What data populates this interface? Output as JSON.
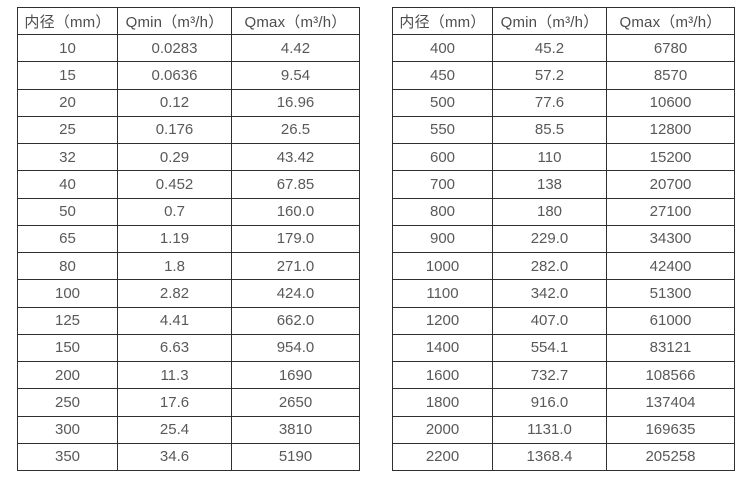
{
  "page": {
    "background_color": "#ffffff",
    "border_color": "#2f2f2f",
    "text_color": "#595959",
    "header_text_color": "#4d4d4d"
  },
  "chart_data": [
    {
      "type": "table",
      "title": "",
      "columns": [
        "内径（mm）",
        "Qmin（m³/h）",
        "Qmax（m³/h）"
      ],
      "rows": [
        [
          "10",
          "0.0283",
          "4.42"
        ],
        [
          "15",
          "0.0636",
          "9.54"
        ],
        [
          "20",
          "0.12",
          "16.96"
        ],
        [
          "25",
          "0.176",
          "26.5"
        ],
        [
          "32",
          "0.29",
          "43.42"
        ],
        [
          "40",
          "0.452",
          "67.85"
        ],
        [
          "50",
          "0.7",
          "160.0"
        ],
        [
          "65",
          "1.19",
          "179.0"
        ],
        [
          "80",
          "1.8",
          "271.0"
        ],
        [
          "100",
          "2.82",
          "424.0"
        ],
        [
          "125",
          "4.41",
          "662.0"
        ],
        [
          "150",
          "6.63",
          "954.0"
        ],
        [
          "200",
          "11.3",
          "1690"
        ],
        [
          "250",
          "17.6",
          "2650"
        ],
        [
          "300",
          "25.4",
          "3810"
        ],
        [
          "350",
          "34.6",
          "5190"
        ]
      ]
    },
    {
      "type": "table",
      "title": "",
      "columns": [
        "内径（mm）",
        "Qmin（m³/h）",
        "Qmax（m³/h）"
      ],
      "rows": [
        [
          "400",
          "45.2",
          "6780"
        ],
        [
          "450",
          "57.2",
          "8570"
        ],
        [
          "500",
          "77.6",
          "10600"
        ],
        [
          "550",
          "85.5",
          "12800"
        ],
        [
          "600",
          "110",
          "15200"
        ],
        [
          "700",
          "138",
          "20700"
        ],
        [
          "800",
          "180",
          "27100"
        ],
        [
          "900",
          "229.0",
          "34300"
        ],
        [
          "1000",
          "282.0",
          "42400"
        ],
        [
          "1100",
          "342.0",
          "51300"
        ],
        [
          "1200",
          "407.0",
          "61000"
        ],
        [
          "1400",
          "554.1",
          "83121"
        ],
        [
          "1600",
          "732.7",
          "108566"
        ],
        [
          "1800",
          "916.0",
          "137404"
        ],
        [
          "2000",
          "1131.0",
          "169635"
        ],
        [
          "2200",
          "1368.4",
          "205258"
        ]
      ]
    }
  ]
}
